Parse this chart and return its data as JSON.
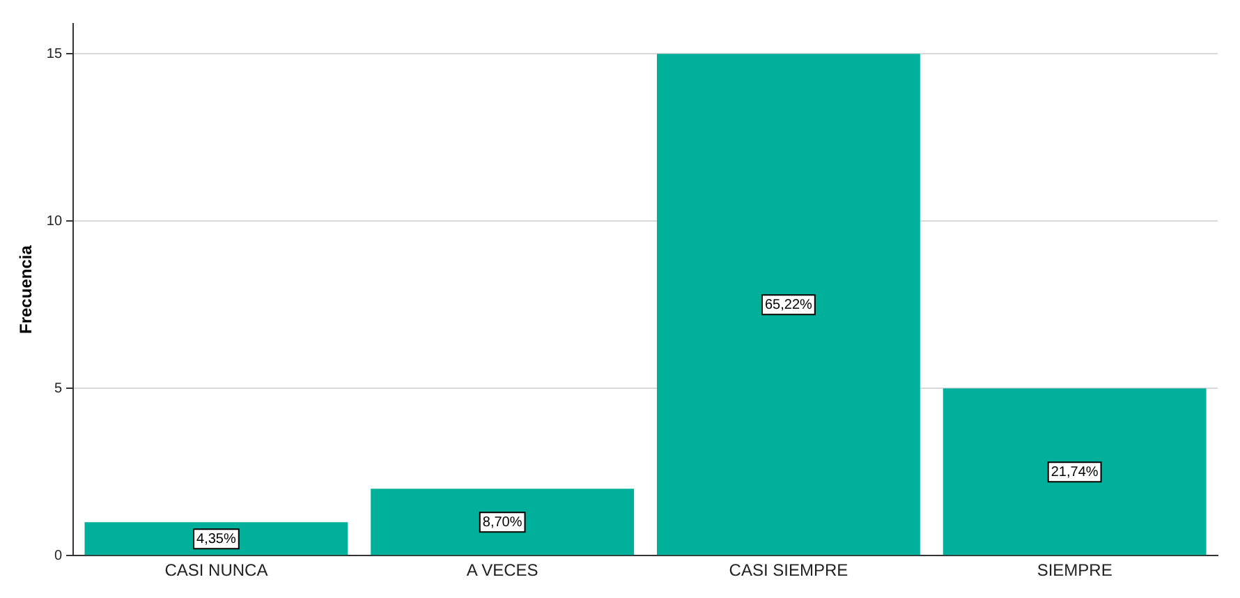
{
  "chart_data": {
    "type": "bar",
    "ylabel": "Frecuencia",
    "categories": [
      "CASI NUNCA",
      "A VECES",
      "CASI SIEMPRE",
      "SIEMPRE"
    ],
    "values": [
      1,
      2,
      15,
      5
    ],
    "color": "#00b09a",
    "annotations": [
      {
        "text": "4,35%",
        "x": "CASI NUNCA",
        "y": 0.5
      },
      {
        "text": "8,70%",
        "x": "A VECES",
        "y": 1
      },
      {
        "text": "65,22%",
        "x": "CASI SIEMPRE",
        "y": 7.5
      },
      {
        "text": "21,74%",
        "x": "SIEMPRE",
        "y": 2.5
      }
    ],
    "ylim": [
      0,
      15.9
    ],
    "yticks": [
      0,
      5,
      10,
      15
    ],
    "grid": "y"
  }
}
